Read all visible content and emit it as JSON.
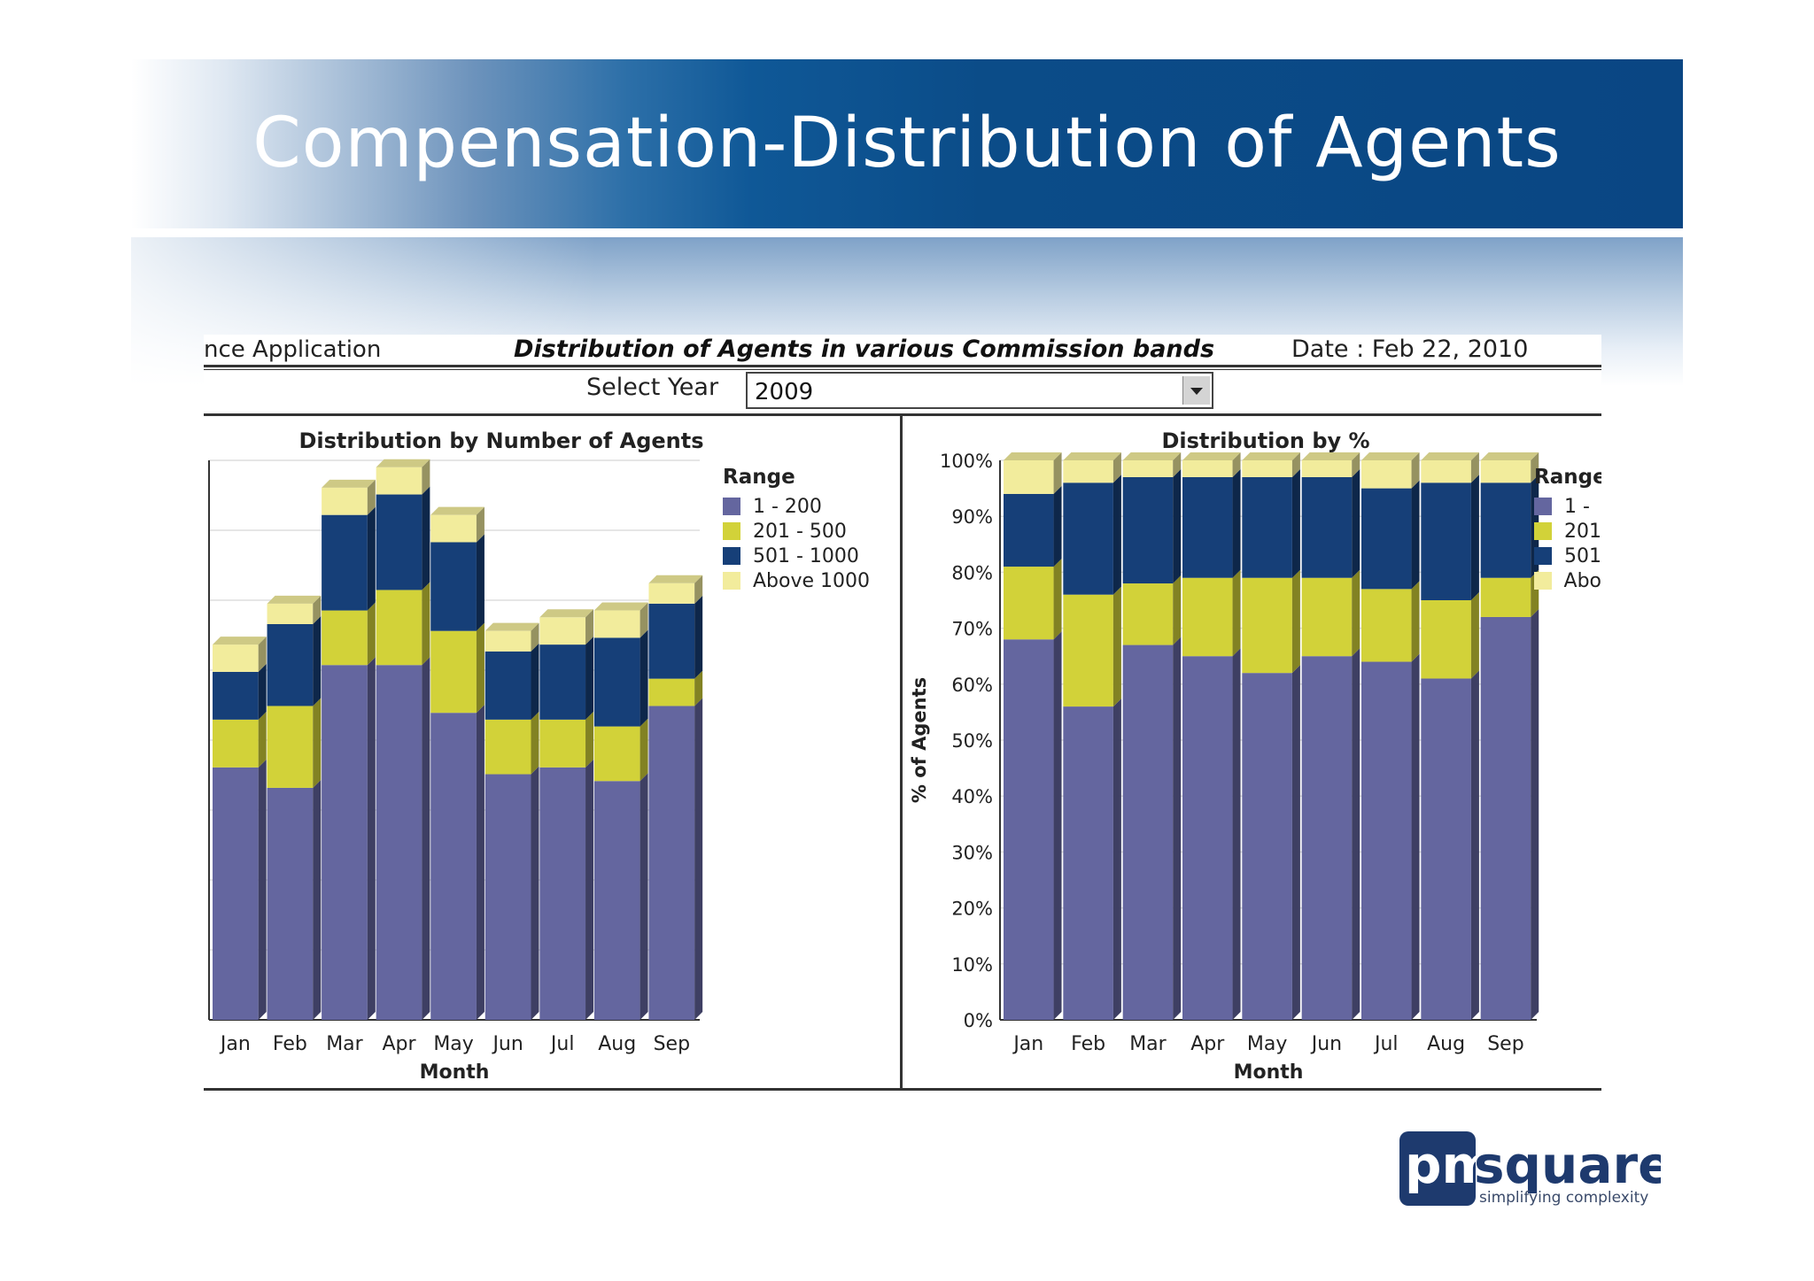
{
  "slide": {
    "title": "Compensation-Distribution of Agents"
  },
  "report": {
    "app_label": "nce Application",
    "title": "Distribution of Agents in various Commission bands",
    "date": "Date : Feb 22, 2010",
    "select_year_label": "Select Year",
    "selected_year": "2009"
  },
  "logo": {
    "brand": "pmsquare",
    "tagline": "simplifying complexity"
  },
  "legend": {
    "title": "Range",
    "items": [
      "1  -  200",
      "201  -  500",
      "501  -  1000",
      "Above 1000"
    ],
    "items_truncated": [
      "1  -",
      "201",
      "501",
      "Abo"
    ]
  },
  "colors": {
    "band1": "#64669f",
    "band2": "#d2d239",
    "band3": "#163f78",
    "band4": "#f2ec9c"
  },
  "chart_data": [
    {
      "type": "bar",
      "stacked": true,
      "title": "Distribution by Number of  Agents",
      "xlabel": "Month",
      "ylabel": "",
      "categories": [
        "Jan",
        "Feb",
        "Mar",
        "Apr",
        "May",
        "Jun",
        "Jul",
        "Aug",
        "Sep"
      ],
      "ylim": [
        0,
        8.2
      ],
      "series": [
        {
          "name": "1  -  200",
          "values": [
            3.7,
            3.4,
            5.2,
            5.2,
            4.5,
            3.6,
            3.7,
            3.5,
            4.6
          ]
        },
        {
          "name": "201  -  500",
          "values": [
            0.7,
            1.2,
            0.8,
            1.1,
            1.2,
            0.8,
            0.7,
            0.8,
            0.4
          ]
        },
        {
          "name": "501  -  1000",
          "values": [
            0.7,
            1.2,
            1.4,
            1.4,
            1.3,
            1.0,
            1.1,
            1.3,
            1.1
          ]
        },
        {
          "name": "Above 1000",
          "values": [
            0.4,
            0.3,
            0.4,
            0.4,
            0.4,
            0.3,
            0.4,
            0.4,
            0.3
          ]
        }
      ]
    },
    {
      "type": "bar",
      "stacked": true,
      "title": "Distribution by %",
      "xlabel": "Month",
      "ylabel": "% of Agents",
      "categories": [
        "Jan",
        "Feb",
        "Mar",
        "Apr",
        "May",
        "Jun",
        "Jul",
        "Aug",
        "Sep"
      ],
      "yticks": [
        "0%",
        "10%",
        "20%",
        "30%",
        "40%",
        "50%",
        "60%",
        "70%",
        "80%",
        "90%",
        "100%"
      ],
      "ylim": [
        0,
        100
      ],
      "series": [
        {
          "name": "1  -  200",
          "values": [
            68,
            56,
            67,
            65,
            62,
            65,
            64,
            61,
            72
          ]
        },
        {
          "name": "201  -  500",
          "values": [
            13,
            20,
            11,
            14,
            17,
            14,
            13,
            14,
            7
          ]
        },
        {
          "name": "501  -  1000",
          "values": [
            13,
            20,
            19,
            18,
            18,
            18,
            18,
            21,
            17
          ]
        },
        {
          "name": "Above 1000",
          "values": [
            6,
            4,
            3,
            3,
            3,
            3,
            5,
            4,
            4
          ]
        }
      ]
    }
  ]
}
